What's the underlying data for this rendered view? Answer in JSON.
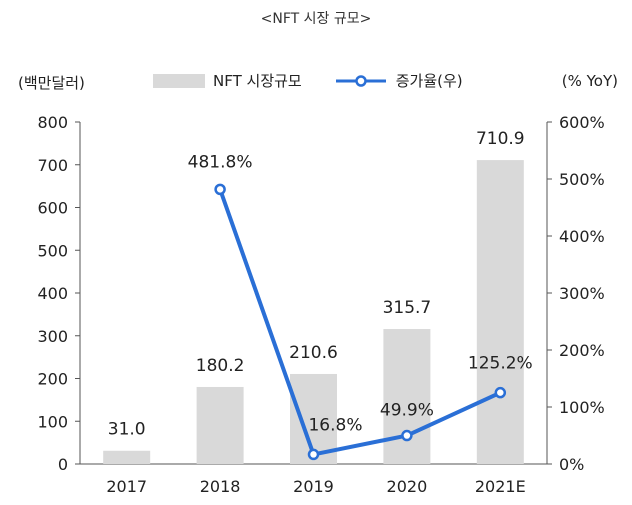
{
  "title": "<NFT 시장 규모>",
  "unit_left": "(백만달러)",
  "unit_right": "(% YoY)",
  "legend": {
    "bar_label": "NFT 시장규모",
    "line_label": "증가율(우)"
  },
  "colors": {
    "bar": "#d9d9d9",
    "line": "#2a6fd6",
    "marker_fill": "#ffffff"
  },
  "chart_data": {
    "type": "bar",
    "categories": [
      "2017",
      "2018",
      "2019",
      "2020",
      "2021E"
    ],
    "series": [
      {
        "name": "NFT 시장규모",
        "type": "bar",
        "axis": "left",
        "values": [
          31.0,
          180.2,
          210.6,
          315.7,
          710.9
        ],
        "labels": [
          "31.0",
          "180.2",
          "210.6",
          "315.7",
          "710.9"
        ]
      },
      {
        "name": "증가율(우)",
        "type": "line",
        "axis": "right",
        "values": [
          null,
          481.8,
          16.8,
          49.9,
          125.2
        ],
        "labels": [
          "",
          "481.8%",
          "16.8%",
          "49.9%",
          "125.2%"
        ]
      }
    ],
    "ylim_left": [
      0,
      800
    ],
    "yticks_left": [
      "0",
      "100",
      "200",
      "300",
      "400",
      "500",
      "600",
      "700",
      "800"
    ],
    "ylim_right": [
      0,
      600
    ],
    "yticks_right": [
      "0%",
      "100%",
      "200%",
      "300%",
      "400%",
      "500%",
      "600%"
    ],
    "grid": false,
    "legend_position": "top"
  }
}
